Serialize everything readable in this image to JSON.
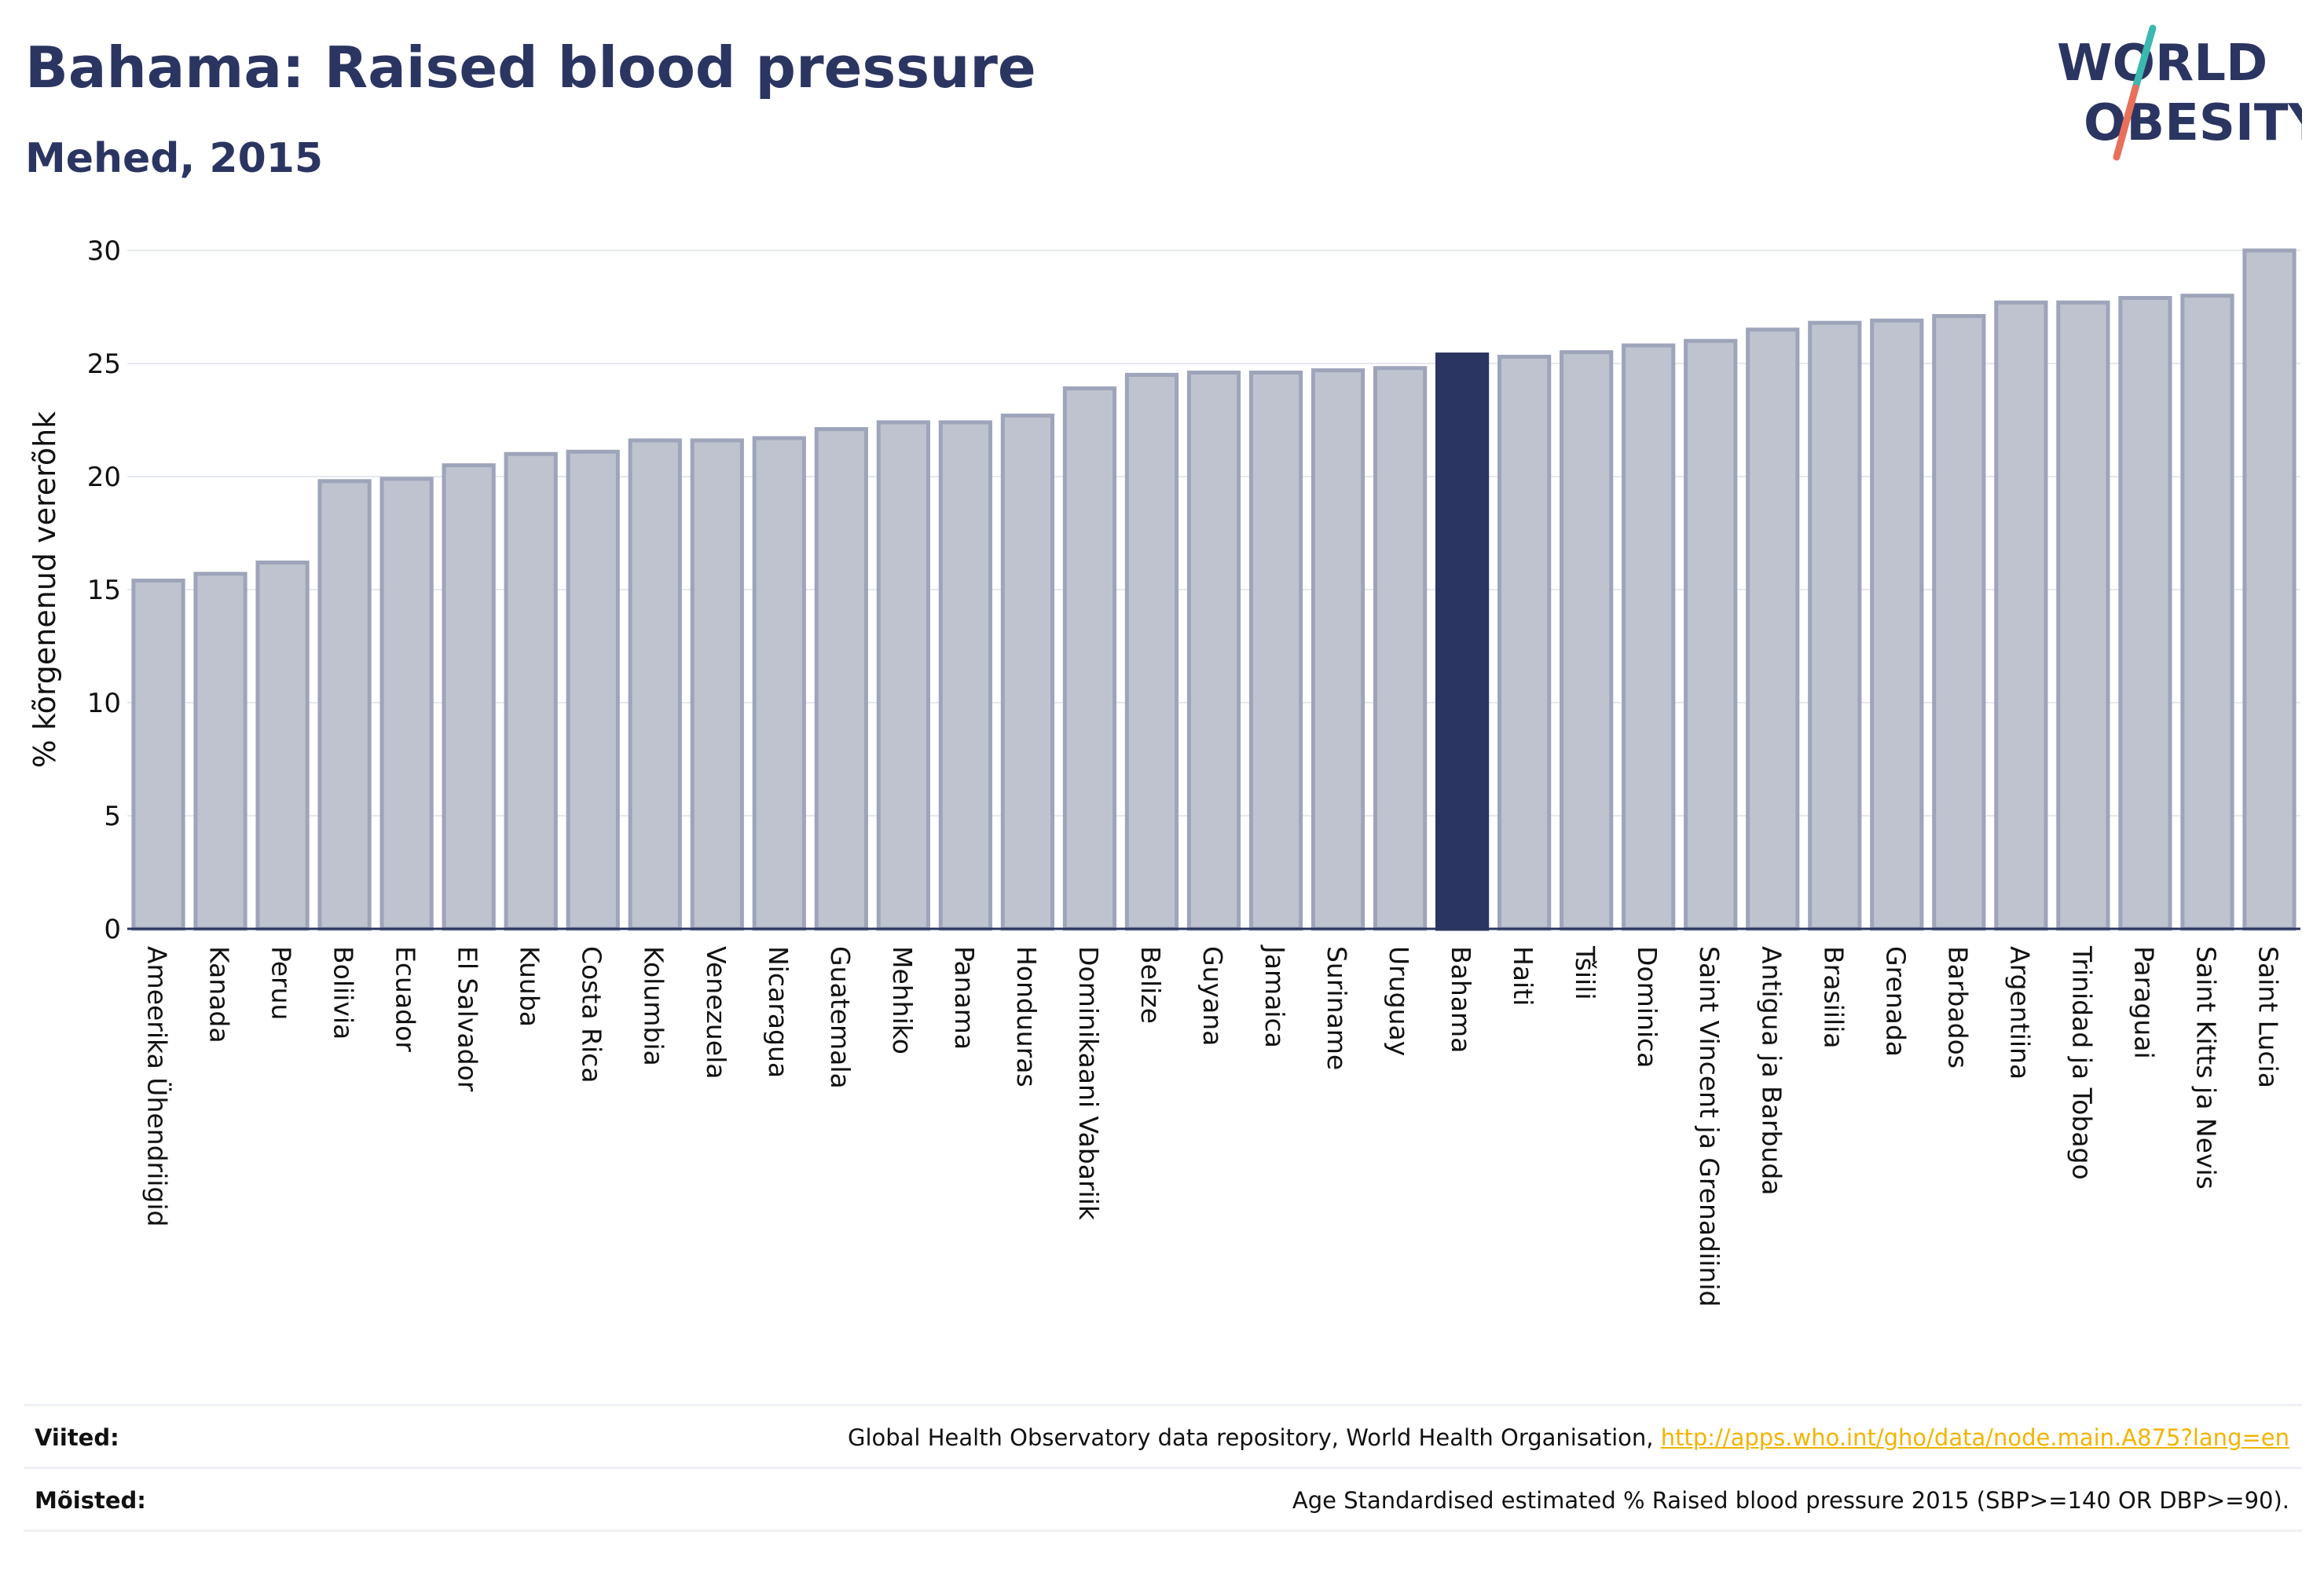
{
  "header": {
    "title": "Bahama: Raised blood pressure",
    "subtitle": "Mehed, 2015"
  },
  "logo": {
    "line1": "WORLD",
    "line2": "OBESITY",
    "colors": {
      "text": "#2b3561",
      "slash_top": "#3cb8b0",
      "slash_bottom": "#e8705a"
    }
  },
  "footer": {
    "sources_label": "Viited:",
    "sources_text": "Global Health Observatory data repository, World Health Organisation, ",
    "sources_link": "http://apps.who.int/gho/data/node.main.A875?lang=en",
    "definitions_label": "Mõisted:",
    "definitions_text": "Age Standardised estimated % Raised blood pressure 2015 (SBP>=140 OR DBP>=90)."
  },
  "chart_data": {
    "type": "bar",
    "ylabel": "% kõrgenenud vererõhk",
    "xlabel": "",
    "ylim": [
      0,
      30
    ],
    "yticks": [
      0,
      5,
      10,
      15,
      20,
      25,
      30
    ],
    "grid": true,
    "highlight": "Bahama",
    "colors": {
      "bar": "#bfc3cf",
      "bar_border": "#9ea4ba",
      "highlight": "#2b3561",
      "grid": "#e6e8ef",
      "axis": "#2b3561"
    },
    "categories": [
      "Ameerika Ühendriigid",
      "Kanada",
      "Peruu",
      "Boliivia",
      "Ecuador",
      "El Salvador",
      "Kuuba",
      "Costa Rica",
      "Kolumbia",
      "Venezuela",
      "Nicaragua",
      "Guatemala",
      "Mehhiko",
      "Panama",
      "Honduuras",
      "Dominikaani Vabariik",
      "Belize",
      "Guyana",
      "Jamaica",
      "Suriname",
      "Uruguay",
      "Bahama",
      "Haiti",
      "Tšiili",
      "Dominica",
      "Saint Vincent ja Grenadiinid",
      "Antigua ja Barbuda",
      "Brasiilia",
      "Grenada",
      "Barbados",
      "Argentiina",
      "Trinidad ja Tobago",
      "Paraguai",
      "Saint Kitts ja Nevis",
      "Saint Lucia"
    ],
    "values": [
      15.4,
      15.7,
      16.2,
      19.8,
      19.9,
      20.5,
      21.0,
      21.1,
      21.6,
      21.6,
      21.7,
      22.1,
      22.4,
      22.4,
      22.7,
      23.9,
      24.5,
      24.6,
      24.6,
      24.7,
      24.8,
      25.4,
      25.3,
      25.5,
      25.8,
      26.0,
      26.5,
      26.8,
      26.9,
      27.1,
      27.7,
      27.7,
      27.9,
      28.0,
      30.0
    ]
  }
}
